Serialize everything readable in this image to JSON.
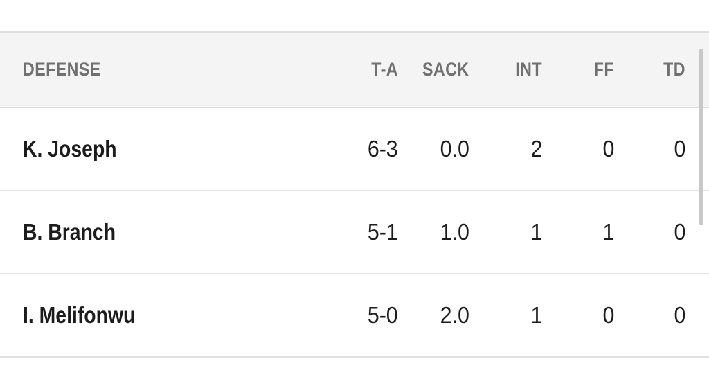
{
  "table": {
    "headers": {
      "section": "DEFENSE",
      "ta": "T-A",
      "sack": "SACK",
      "int": "INT",
      "ff": "FF",
      "td": "TD"
    },
    "rows": [
      {
        "name": "K. Joseph",
        "ta": "6-3",
        "sack": "0.0",
        "int": "2",
        "ff": "0",
        "td": "0"
      },
      {
        "name": "B. Branch",
        "ta": "5-1",
        "sack": "1.0",
        "int": "1",
        "ff": "1",
        "td": "0"
      },
      {
        "name": "I. Melifonwu",
        "ta": "5-0",
        "sack": "2.0",
        "int": "1",
        "ff": "0",
        "td": "0"
      }
    ]
  },
  "colors": {
    "header_bg": "#f4f4f4",
    "header_text": "#707070",
    "body_text": "#1c1c1c",
    "divider": "#e2e2e2",
    "scrollbar": "#c8c8c8"
  }
}
